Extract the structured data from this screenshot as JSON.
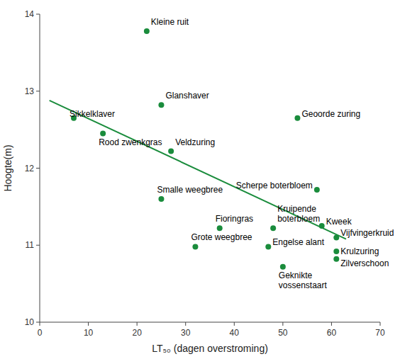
{
  "chart_data": {
    "type": "scatter",
    "xlabel": "LT₅₀ (dagen overstroming)",
    "ylabel": "Hoogte(m)",
    "xlim": [
      0,
      70
    ],
    "ylim": [
      10,
      14
    ],
    "xticks": [
      0,
      10,
      20,
      30,
      40,
      50,
      60,
      70
    ],
    "yticks": [
      10,
      11,
      12,
      13,
      14
    ],
    "grid": false,
    "series": [
      {
        "type": "scatter",
        "color": "#1a8c3c",
        "x": [
          22,
          25,
          7,
          13,
          27,
          53,
          25,
          57,
          37,
          48,
          58,
          32,
          47,
          61,
          61,
          61,
          50
        ],
        "values": [
          13.78,
          12.82,
          12.65,
          12.45,
          12.22,
          12.65,
          11.6,
          11.72,
          11.22,
          11.22,
          11.25,
          10.98,
          10.98,
          11.1,
          10.92,
          10.82,
          10.72
        ],
        "annotations": [
          "Kleine ruit",
          "Glanshaver",
          "Sikkelklaver",
          "Rood zwenkgras",
          "Veldzuring",
          "Geoorde zuring",
          "Smalle weegbree",
          "Scherpe boterbloem",
          "Fioringras",
          "Kruipende\nboterbloem",
          "Kweek",
          "Grote weegbree",
          "Engelse alant",
          "Vijfvingerkruid",
          "Krulzuring",
          "Zilverschoon",
          "Geknikte\nvossenstaart"
        ]
      },
      {
        "type": "line",
        "color": "#1a8c3c",
        "x": [
          2,
          63
        ],
        "values": [
          12.88,
          11.08
        ]
      }
    ]
  }
}
